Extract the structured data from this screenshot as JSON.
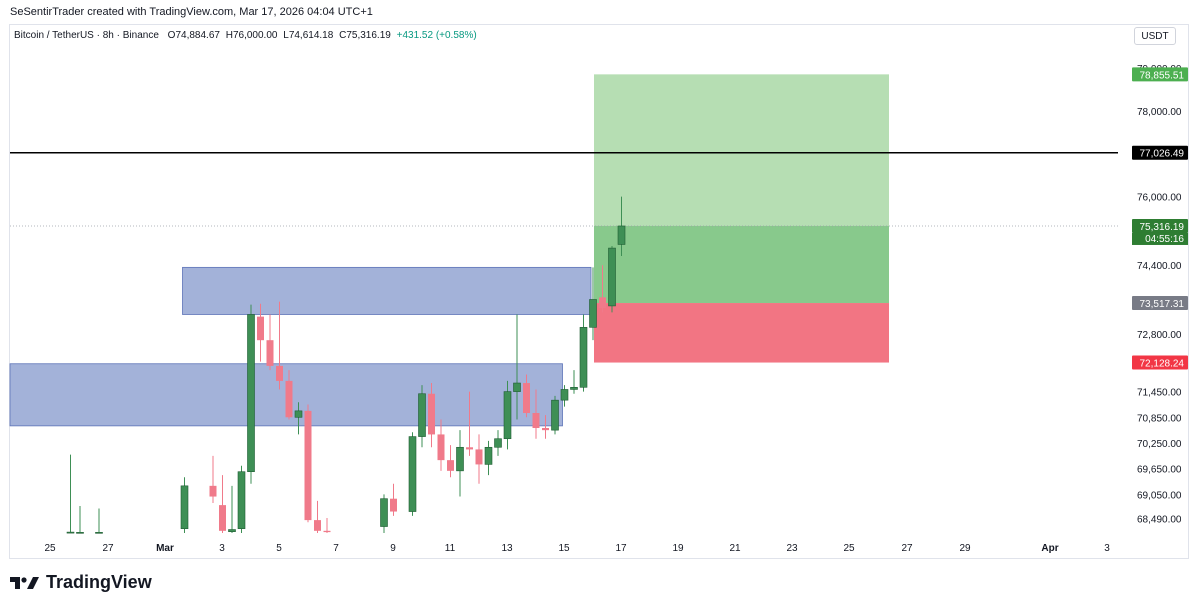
{
  "header": {
    "caption": "SeSentirTrader created with TradingView.com, Mar 17, 2026 04:04 UTC+1"
  },
  "legend": {
    "symbol": "Bitcoin / TetherUS · 8h · Binance",
    "o_label": "O",
    "o_value": "74,884.67",
    "h_label": "H",
    "h_value": "76,000.00",
    "l_label": "L",
    "l_value": "74,614.18",
    "c_label": "C",
    "c_value": "75,316.19",
    "change": "+431.52 (+0.58%)"
  },
  "currency_button": "USDT",
  "footer": {
    "brand": "TradingView"
  },
  "colors": {
    "up": "#3e8f55",
    "down": "#f07a8a",
    "zone_fill": "#8c9fd0",
    "target_fill": "#b6deb3",
    "profit_fill": "#88c98c",
    "stop_fill": "#f27583",
    "level_line": "#000000"
  },
  "chart_data": {
    "type": "candlestick",
    "title": "Bitcoin / TetherUS · 8h · Binance",
    "timeframe": "8h",
    "x_tick_labels": [
      "25",
      "27",
      "Mar",
      "3",
      "5",
      "7",
      "9",
      "11",
      "13",
      "15",
      "17",
      "19",
      "21",
      "23",
      "25",
      "27",
      "29",
      "Apr",
      "3"
    ],
    "y_tick_labels": [
      "79,000.00",
      "78,000.00",
      "76,000.00",
      "74,400.00",
      "73,600.00",
      "72,800.00",
      "71,450.00",
      "70,850.00",
      "70,250.00",
      "69,650.00",
      "69,050.00",
      "68,490.00"
    ],
    "ylim": [
      68150,
      79200
    ],
    "price_labels": [
      {
        "label": "78,855.51",
        "value": 78855.51,
        "kind": "target"
      },
      {
        "label": "77,026.49",
        "value": 77026.49,
        "kind": "level"
      },
      {
        "label": "75,316.19",
        "sub": "04:55:16",
        "value": 75316.19,
        "kind": "last"
      },
      {
        "label": "73,517.31",
        "value": 73517.31,
        "kind": "entry"
      },
      {
        "label": "72,128.24",
        "value": 72128.24,
        "kind": "stop"
      }
    ],
    "horizontal_level": 77026.49,
    "last_price": 75316.19,
    "zones": [
      {
        "date_from": "Mar 3",
        "date_to": "Mar 16",
        "top": 74350,
        "bottom": 73250
      },
      {
        "date_from": "Feb 23",
        "date_to": "Mar 15",
        "top": 72100,
        "bottom": 70650
      }
    ],
    "position": {
      "date_from": "Mar 16",
      "date_to": "Mar 26",
      "target": 78855.51,
      "entry": 73517.31,
      "stop": 72128.24,
      "current": 75316.19
    },
    "candles": [
      {
        "date": "Feb 26",
        "o": 68160,
        "h": 69980,
        "l": 68160,
        "c": 68170
      },
      {
        "date": "Feb 26",
        "o": 68160,
        "h": 68780,
        "l": 68160,
        "c": 68165
      },
      {
        "date": "Feb 27",
        "o": 68160,
        "h": 68720,
        "l": 68160,
        "c": 68165
      },
      {
        "date": "Mar 2",
        "o": 68250,
        "h": 69450,
        "l": 68150,
        "c": 69250
      },
      {
        "date": "Mar 3",
        "o": 69250,
        "h": 69950,
        "l": 68850,
        "c": 69000
      },
      {
        "date": "Mar 3",
        "o": 68800,
        "h": 69500,
        "l": 68150,
        "c": 68200
      },
      {
        "date": "Mar 3",
        "o": 68180,
        "h": 69250,
        "l": 68150,
        "c": 68230
      },
      {
        "date": "Mar 4",
        "o": 68250,
        "h": 69720,
        "l": 68150,
        "c": 69580
      },
      {
        "date": "Mar 4",
        "o": 69580,
        "h": 73480,
        "l": 69300,
        "c": 73250
      },
      {
        "date": "Mar 4",
        "o": 73200,
        "h": 73500,
        "l": 72150,
        "c": 72650
      },
      {
        "date": "Mar 5",
        "o": 72650,
        "h": 73250,
        "l": 71950,
        "c": 72050
      },
      {
        "date": "Mar 5",
        "o": 72050,
        "h": 73550,
        "l": 71500,
        "c": 71700
      },
      {
        "date": "Mar 5",
        "o": 71700,
        "h": 71950,
        "l": 70800,
        "c": 70850
      },
      {
        "date": "Mar 6",
        "o": 70850,
        "h": 71200,
        "l": 70450,
        "c": 71000
      },
      {
        "date": "Mar 6",
        "o": 71000,
        "h": 71150,
        "l": 68400,
        "c": 68450
      },
      {
        "date": "Mar 6",
        "o": 68450,
        "h": 68900,
        "l": 68150,
        "c": 68200
      },
      {
        "date": "Mar 7",
        "o": 68200,
        "h": 68500,
        "l": 68150,
        "c": 68170
      },
      {
        "date": "Mar 9",
        "o": 68300,
        "h": 69050,
        "l": 68150,
        "c": 68950
      },
      {
        "date": "Mar 9",
        "o": 68950,
        "h": 69300,
        "l": 68550,
        "c": 68650
      },
      {
        "date": "Mar 10",
        "o": 68650,
        "h": 70500,
        "l": 68550,
        "c": 70400
      },
      {
        "date": "Mar 10",
        "o": 70400,
        "h": 71600,
        "l": 70150,
        "c": 71400
      },
      {
        "date": "Mar 10",
        "o": 71400,
        "h": 71650,
        "l": 70150,
        "c": 70450
      },
      {
        "date": "Mar 11",
        "o": 70450,
        "h": 70800,
        "l": 69600,
        "c": 69850
      },
      {
        "date": "Mar 11",
        "o": 69850,
        "h": 70200,
        "l": 69450,
        "c": 69600
      },
      {
        "date": "Mar 11",
        "o": 69600,
        "h": 70550,
        "l": 69000,
        "c": 70150
      },
      {
        "date": "Mar 12",
        "o": 70150,
        "h": 71450,
        "l": 69950,
        "c": 70100
      },
      {
        "date": "Mar 12",
        "o": 70100,
        "h": 70450,
        "l": 69300,
        "c": 69750
      },
      {
        "date": "Mar 12",
        "o": 69750,
        "h": 70300,
        "l": 69500,
        "c": 70150
      },
      {
        "date": "Mar 13",
        "o": 70150,
        "h": 70550,
        "l": 69950,
        "c": 70350
      },
      {
        "date": "Mar 13",
        "o": 70350,
        "h": 71700,
        "l": 70100,
        "c": 71450
      },
      {
        "date": "Mar 13",
        "o": 71450,
        "h": 73250,
        "l": 70800,
        "c": 71650
      },
      {
        "date": "Mar 14",
        "o": 71650,
        "h": 71850,
        "l": 70850,
        "c": 70950
      },
      {
        "date": "Mar 14",
        "o": 70950,
        "h": 71500,
        "l": 70350,
        "c": 70600
      },
      {
        "date": "Mar 14",
        "o": 70600,
        "h": 70900,
        "l": 70350,
        "c": 70550
      },
      {
        "date": "Mar 15",
        "o": 70550,
        "h": 71350,
        "l": 70450,
        "c": 71250
      },
      {
        "date": "Mar 15",
        "o": 71250,
        "h": 71600,
        "l": 71100,
        "c": 71500
      },
      {
        "date": "Mar 15",
        "o": 71500,
        "h": 71950,
        "l": 71400,
        "c": 71550
      },
      {
        "date": "Mar 16",
        "o": 71550,
        "h": 73250,
        "l": 71450,
        "c": 72950
      },
      {
        "date": "Mar 16",
        "o": 72950,
        "h": 74350,
        "l": 72650,
        "c": 73600
      },
      {
        "date": "Mar 16",
        "o": 73650,
        "h": 74400,
        "l": 73300,
        "c": 73400
      },
      {
        "date": "Mar 17",
        "o": 73450,
        "h": 74850,
        "l": 73300,
        "c": 74800
      },
      {
        "date": "Mar 17",
        "o": 74884.67,
        "h": 76000,
        "l": 74614.18,
        "c": 75316.19
      }
    ]
  }
}
